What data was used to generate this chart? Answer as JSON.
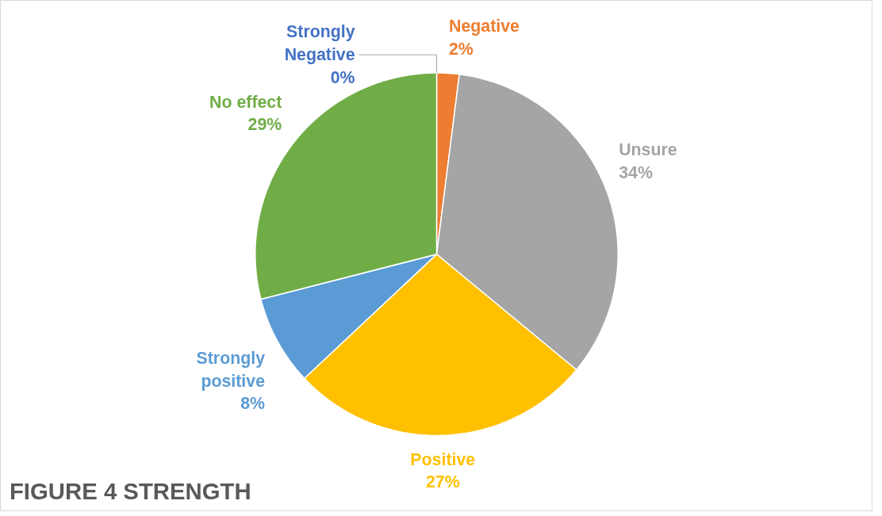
{
  "chart_data": {
    "type": "pie",
    "title": "FIGURE 4 STRENGTH",
    "categories": [
      "Strongly Negative",
      "Negative",
      "Unsure",
      "Positive",
      "Strongly positive",
      "No effect"
    ],
    "values": [
      0,
      2,
      34,
      27,
      8,
      29
    ],
    "colors": [
      "#4472c4",
      "#ed7d31",
      "#a5a5a5",
      "#ffc000",
      "#5b9bd5",
      "#70ad47"
    ],
    "value_labels": [
      "0%",
      "2%",
      "34%",
      "27%",
      "8%",
      "29%"
    ]
  }
}
